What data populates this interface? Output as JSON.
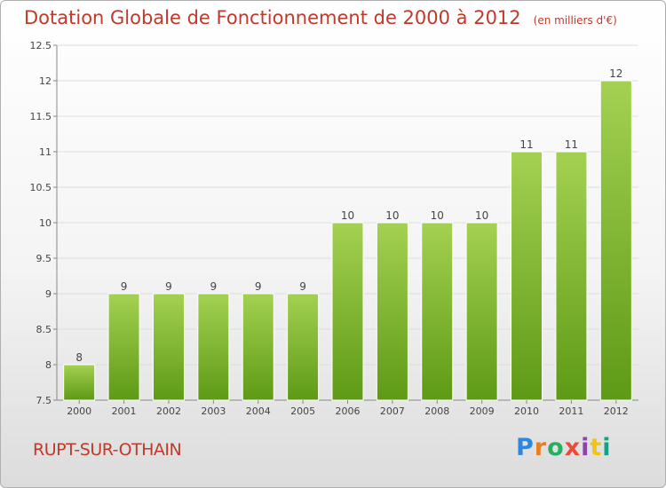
{
  "header": {
    "title": "Dotation Globale de Fonctionnement de 2000 à 2012",
    "unit": "(en milliers d'€)"
  },
  "footer": {
    "commune": "RUPT-SUR-OTHAIN",
    "logo": "Proxiti"
  },
  "colors": {
    "bar_top": "#a4d152",
    "bar_bottom": "#5e9a15",
    "text_red": "#c0392b",
    "grid": "#dddddd"
  },
  "chart_data": {
    "type": "bar",
    "title": "Dotation Globale de Fonctionnement de 2000 à 2012",
    "subtitle": "(en milliers d'€)",
    "xlabel": "",
    "ylabel": "",
    "categories": [
      "2000",
      "2001",
      "2002",
      "2003",
      "2004",
      "2005",
      "2006",
      "2007",
      "2008",
      "2009",
      "2010",
      "2011",
      "2012"
    ],
    "values": [
      8,
      9,
      9,
      9,
      9,
      9,
      10,
      10,
      10,
      10,
      11,
      11,
      12
    ],
    "data_labels": [
      "8",
      "9",
      "9",
      "9",
      "9",
      "9",
      "10",
      "10",
      "10",
      "10",
      "11",
      "11",
      "12"
    ],
    "ylim": [
      7.5,
      12.5
    ],
    "yticks": [
      7.5,
      8,
      8.5,
      9,
      9.5,
      10,
      10.5,
      11,
      11.5,
      12,
      12.5
    ],
    "ytick_labels": [
      "7.5",
      "8",
      "8.5",
      "9",
      "9.5",
      "10",
      "10.5",
      "11",
      "11.5",
      "12",
      "12.5"
    ],
    "grid": true,
    "legend": "none"
  }
}
